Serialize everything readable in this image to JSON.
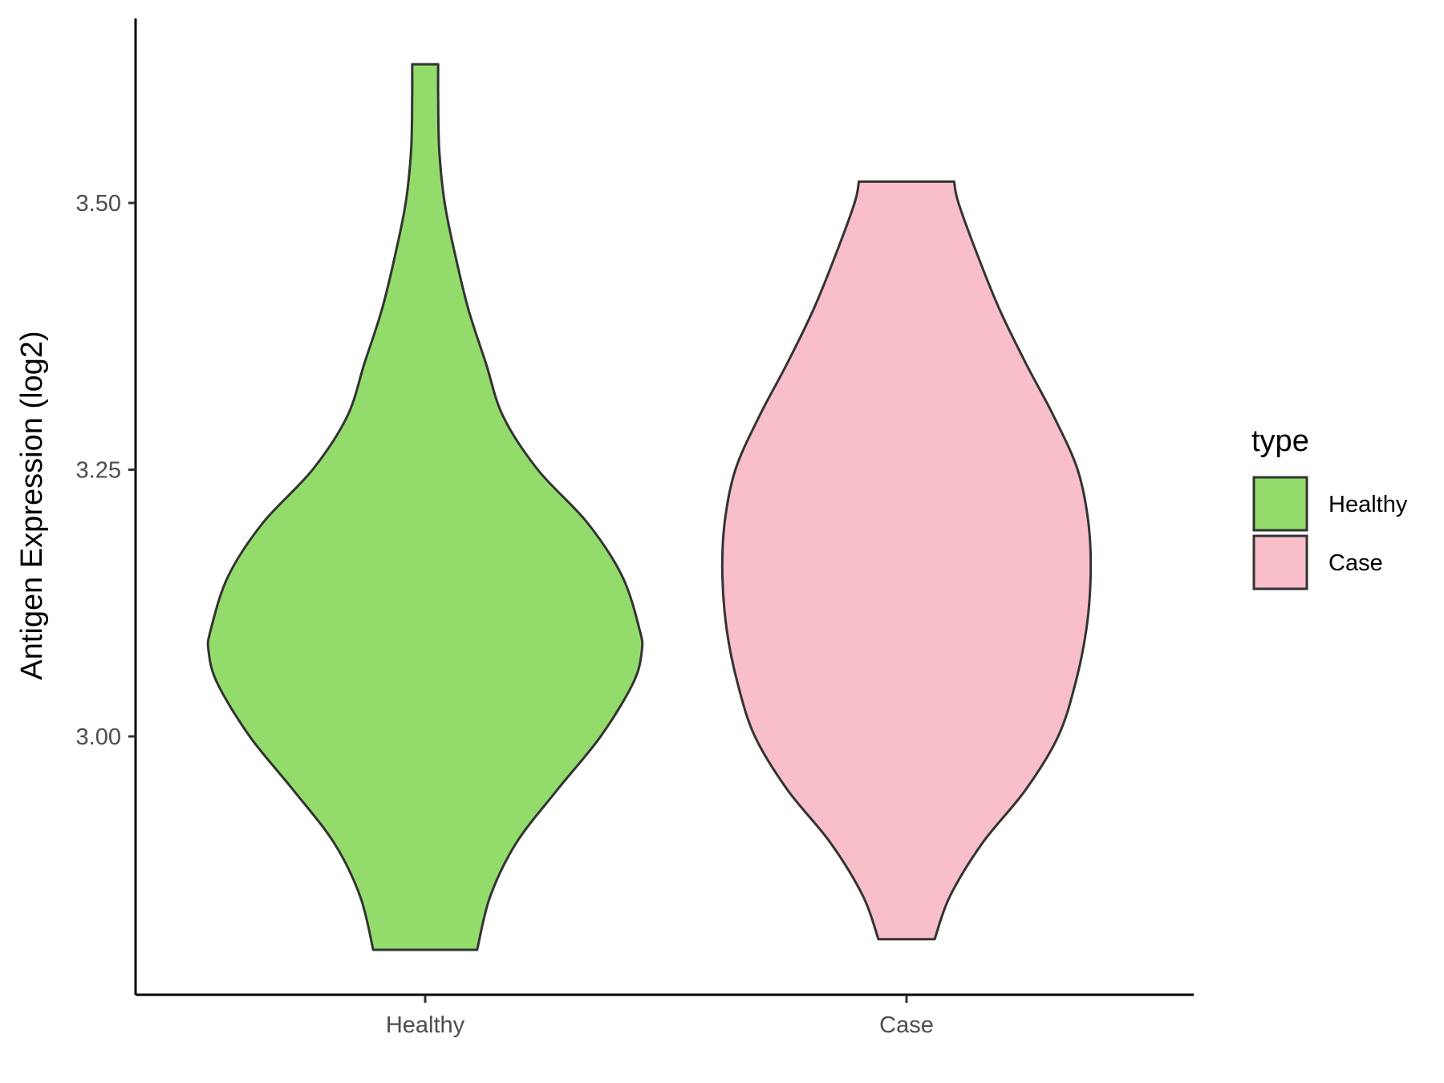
{
  "chart_data": {
    "type": "violin",
    "categories": [
      "Healthy",
      "Case"
    ],
    "ylabel": "Antigen Expression (log2)",
    "xlabel": "",
    "y_ticks": [
      "3.00",
      "3.25",
      "3.50"
    ],
    "y_tick_values": [
      3.0,
      3.25,
      3.5
    ],
    "ylim": [
      2.76,
      3.68
    ],
    "grid": false,
    "legend": {
      "title": "type",
      "position": "right",
      "entries": [
        "Healthy",
        "Case"
      ]
    },
    "series": [
      {
        "category": "Healthy",
        "color": "#93DC6B",
        "min": 2.8,
        "max": 3.63,
        "density_profile": [
          [
            2.8,
            0.24
          ],
          [
            2.85,
            0.3
          ],
          [
            2.9,
            0.42
          ],
          [
            2.95,
            0.61
          ],
          [
            3.0,
            0.81
          ],
          [
            3.05,
            0.96
          ],
          [
            3.08,
            1.0
          ],
          [
            3.1,
            0.99
          ],
          [
            3.15,
            0.91
          ],
          [
            3.2,
            0.75
          ],
          [
            3.25,
            0.52
          ],
          [
            3.3,
            0.36
          ],
          [
            3.35,
            0.28
          ],
          [
            3.4,
            0.2
          ],
          [
            3.45,
            0.14
          ],
          [
            3.5,
            0.09
          ],
          [
            3.55,
            0.065
          ],
          [
            3.6,
            0.06
          ],
          [
            3.63,
            0.06
          ]
        ]
      },
      {
        "category": "Case",
        "color": "#F8BFCB",
        "min": 2.81,
        "max": 3.52,
        "density_profile": [
          [
            2.81,
            0.13
          ],
          [
            2.85,
            0.2
          ],
          [
            2.9,
            0.35
          ],
          [
            2.95,
            0.55
          ],
          [
            3.0,
            0.7
          ],
          [
            3.05,
            0.78
          ],
          [
            3.1,
            0.83
          ],
          [
            3.15,
            0.85
          ],
          [
            3.2,
            0.84
          ],
          [
            3.25,
            0.79
          ],
          [
            3.3,
            0.68
          ],
          [
            3.35,
            0.55
          ],
          [
            3.4,
            0.43
          ],
          [
            3.45,
            0.33
          ],
          [
            3.5,
            0.24
          ],
          [
            3.52,
            0.22
          ]
        ]
      }
    ]
  }
}
